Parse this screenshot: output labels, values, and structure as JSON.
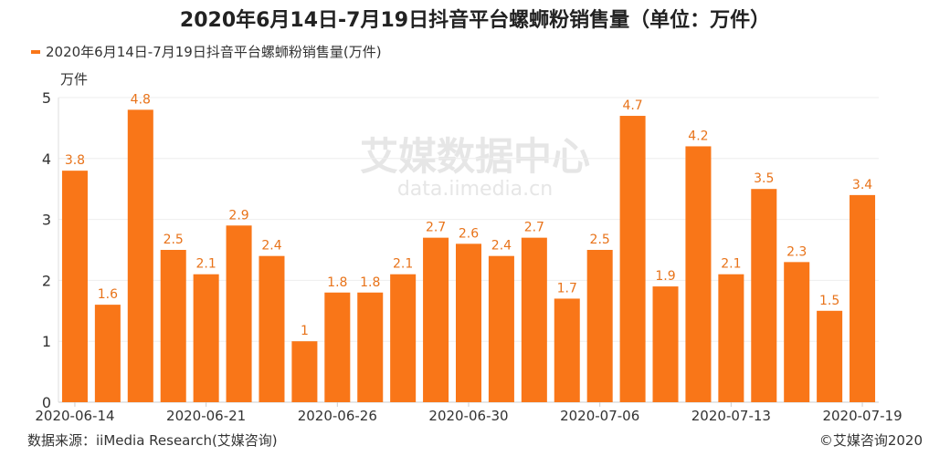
{
  "chart_data": {
    "type": "bar",
    "title": "2020年6月14日-7月19日抖音平台螺蛳粉销售量（单位：万件）",
    "legend": "2020年6月14日-7月19日抖音平台螺蛳粉销售量(万件)",
    "ylabel": "万件",
    "ylim": [
      0,
      5
    ],
    "yticks": [
      0,
      1,
      2,
      3,
      4,
      5
    ],
    "grid": true,
    "color": "#F97618",
    "x_tick_labels": [
      {
        "index": 0,
        "label": "2020-06-14"
      },
      {
        "index": 4,
        "label": "2020-06-21"
      },
      {
        "index": 8,
        "label": "2020-06-26"
      },
      {
        "index": 12,
        "label": "2020-06-30"
      },
      {
        "index": 16,
        "label": "2020-07-06"
      },
      {
        "index": 20,
        "label": "2020-07-13"
      },
      {
        "index": 24,
        "label": "2020-07-19"
      }
    ],
    "values": [
      3.8,
      1.6,
      4.8,
      2.5,
      2.1,
      2.9,
      2.4,
      1,
      1.8,
      1.8,
      2.1,
      2.7,
      2.6,
      2.4,
      2.7,
      1.7,
      2.5,
      4.7,
      1.9,
      4.2,
      2.1,
      3.5,
      2.3,
      1.5,
      3.4
    ]
  },
  "footer": {
    "source": "数据来源：iiMedia Research(艾媒咨询)",
    "copyright": "©艾媒咨询2020"
  },
  "watermark": {
    "brand": "艾媒数据中心",
    "url": "data.iimedia.cn"
  }
}
